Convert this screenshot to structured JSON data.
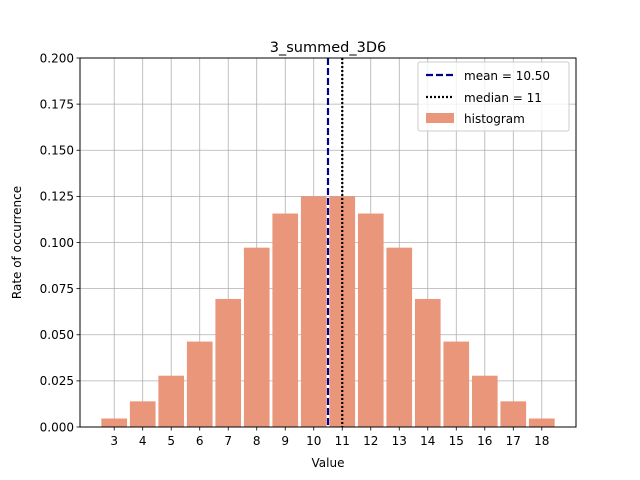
{
  "chart_data": {
    "type": "bar",
    "title": "3_summed_3D6",
    "xlabel": "Value",
    "ylabel": "Rate of occurrence",
    "categories": [
      "3",
      "4",
      "5",
      "6",
      "7",
      "8",
      "9",
      "10",
      "11",
      "12",
      "13",
      "14",
      "15",
      "16",
      "17",
      "18"
    ],
    "x": [
      3,
      4,
      5,
      6,
      7,
      8,
      9,
      10,
      11,
      12,
      13,
      14,
      15,
      16,
      17,
      18
    ],
    "values": [
      0.0046,
      0.0139,
      0.0278,
      0.0463,
      0.0694,
      0.0972,
      0.1157,
      0.125,
      0.125,
      0.1157,
      0.0972,
      0.0694,
      0.0463,
      0.0278,
      0.0139,
      0.0046
    ],
    "xlim": [
      1.8,
      19.2
    ],
    "ylim": [
      0,
      0.2
    ],
    "yticks": [
      "0.000",
      "0.025",
      "0.050",
      "0.075",
      "0.100",
      "0.125",
      "0.150",
      "0.175",
      "0.200"
    ],
    "grid": true,
    "bar_color": "#e9967a",
    "mean": {
      "value": 10.5,
      "label": "mean = 10.50",
      "color": "#00008b",
      "style": "dashed"
    },
    "median": {
      "value": 11,
      "label": "median = 11",
      "color": "#000000",
      "style": "dotted"
    },
    "legend": {
      "position": "top-right",
      "histogram_label": "histogram"
    }
  }
}
